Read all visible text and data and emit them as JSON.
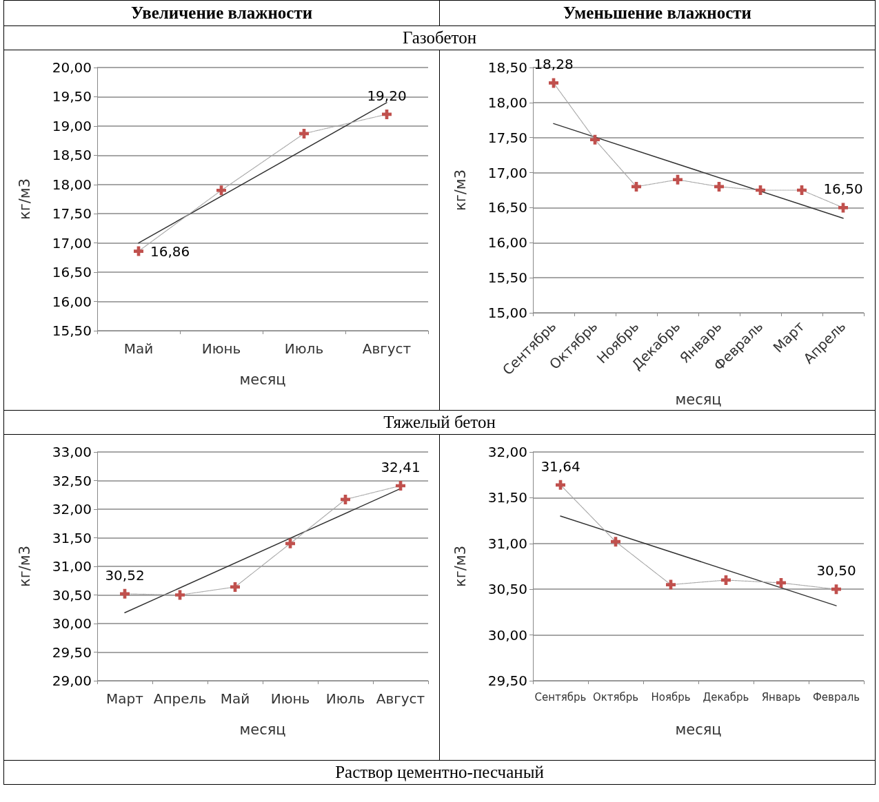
{
  "chart_data": [
    {
      "type": "line",
      "title": "Увеличение влажности",
      "subtitle": "Газобетон",
      "xlabel": "месяц",
      "ylabel": "кг/м3",
      "grid": "y",
      "categories": [
        "Май",
        "Июнь",
        "Июль",
        "Август"
      ],
      "ylim": [
        15.5,
        20
      ],
      "yticks": [
        {
          "value": 15.5,
          "label": "15,50"
        },
        {
          "value": 16,
          "label": "16,00"
        },
        {
          "value": 16.5,
          "label": "16,50"
        },
        {
          "value": 17,
          "label": "17,00"
        },
        {
          "value": 17.5,
          "label": "17,50"
        },
        {
          "value": 18,
          "label": "18,00"
        },
        {
          "value": 18.5,
          "label": "18,50"
        },
        {
          "value": 19,
          "label": "19,00"
        },
        {
          "value": 19.5,
          "label": "19,50"
        },
        {
          "value": 20,
          "label": "20,00"
        }
      ],
      "series": [
        {
          "color": "#c0504d",
          "marker": "cross",
          "line_style": "dotted",
          "values": [
            16.86,
            17.9,
            18.87,
            19.2
          ],
          "value_labels": [
            "16,86",
            null,
            null,
            "19,20"
          ]
        },
        {
          "type": "line",
          "color": "#333333",
          "marker": "none",
          "line_style": "solid",
          "x": [
            "Май",
            "Август"
          ],
          "values": [
            17.0,
            19.4
          ]
        }
      ]
    },
    {
      "type": "line",
      "title": "Уменьшение влажности",
      "xlabel": "месяц",
      "ylabel": "кг/м3",
      "grid": "y",
      "categories": [
        "Сентябрь",
        "Октябрь",
        "Ноябрь",
        "Декабрь",
        "Январь",
        "Февраль",
        "Март",
        "Апрель"
      ],
      "ylim": [
        15,
        18.5
      ],
      "yticks": [
        {
          "value": 15,
          "label": "15,00"
        },
        {
          "value": 15.5,
          "label": "15,50"
        },
        {
          "value": 16,
          "label": "16,00"
        },
        {
          "value": 16.5,
          "label": "16,50"
        },
        {
          "value": 17,
          "label": "17,00"
        },
        {
          "value": 17.5,
          "label": "17,50"
        },
        {
          "value": 18,
          "label": "18,00"
        },
        {
          "value": 18.5,
          "label": "18,50"
        }
      ],
      "series": [
        {
          "color": "#c0504d",
          "marker": "cross",
          "line_style": "dotted",
          "values": [
            18.28,
            17.47,
            16.8,
            16.9,
            16.8,
            16.75,
            16.75,
            16.5
          ],
          "value_labels": [
            "18,28",
            null,
            null,
            null,
            null,
            null,
            null,
            "16,50"
          ]
        },
        {
          "type": "line",
          "color": "#333333",
          "marker": "none",
          "line_style": "solid",
          "x": [
            "Сентябрь",
            "Апрель"
          ],
          "values": [
            17.7,
            16.35
          ]
        }
      ]
    },
    {
      "type": "line",
      "subtitle": "Тяжелый бетон",
      "xlabel": "месяц",
      "ylabel": "кг/м3",
      "grid": "y",
      "categories": [
        "Март",
        "Апрель",
        "Май",
        "Июнь",
        "Июль",
        "Август"
      ],
      "ylim": [
        29,
        33
      ],
      "yticks": [
        {
          "value": 29,
          "label": "29,00"
        },
        {
          "value": 29.5,
          "label": "29,50"
        },
        {
          "value": 30,
          "label": "30,00"
        },
        {
          "value": 30.5,
          "label": "30,50"
        },
        {
          "value": 31,
          "label": "31,00"
        },
        {
          "value": 31.5,
          "label": "31,50"
        },
        {
          "value": 32,
          "label": "32,00"
        },
        {
          "value": 32.5,
          "label": "32,50"
        },
        {
          "value": 33,
          "label": "33,00"
        }
      ],
      "series": [
        {
          "color": "#c0504d",
          "marker": "cross",
          "line_style": "dotted",
          "values": [
            30.52,
            30.5,
            30.64,
            31.4,
            32.17,
            32.41
          ],
          "value_labels": [
            "30,52",
            null,
            null,
            null,
            null,
            "32,41"
          ]
        },
        {
          "type": "line",
          "color": "#333333",
          "marker": "none",
          "line_style": "solid",
          "x": [
            "Март",
            "Август"
          ],
          "values": [
            30.19,
            32.36
          ]
        }
      ]
    },
    {
      "type": "line",
      "xlabel": "месяц",
      "ylabel": "кг/м3",
      "grid": "y",
      "categories": [
        "Сентябрь",
        "Октябрь",
        "Ноябрь",
        "Декабрь",
        "Январь",
        "Февраль"
      ],
      "ylim": [
        29.5,
        32
      ],
      "yticks": [
        {
          "value": 29.5,
          "label": "29,50"
        },
        {
          "value": 30,
          "label": "30,00"
        },
        {
          "value": 30.5,
          "label": "30,50"
        },
        {
          "value": 31,
          "label": "31,00"
        },
        {
          "value": 31.5,
          "label": "31,50"
        },
        {
          "value": 32,
          "label": "32,00"
        }
      ],
      "series": [
        {
          "color": "#c0504d",
          "marker": "cross",
          "line_style": "dotted",
          "values": [
            31.64,
            31.02,
            30.55,
            30.6,
            30.57,
            30.5
          ],
          "value_labels": [
            "31,64",
            null,
            null,
            null,
            null,
            "30,50"
          ]
        },
        {
          "type": "line",
          "color": "#333333",
          "marker": "none",
          "line_style": "solid",
          "x": [
            "Сентябрь",
            "Февраль"
          ],
          "values": [
            31.3,
            30.32
          ]
        }
      ]
    },
    {
      "type": "other",
      "subtitle": "Раствор цементно-песчаный"
    }
  ]
}
